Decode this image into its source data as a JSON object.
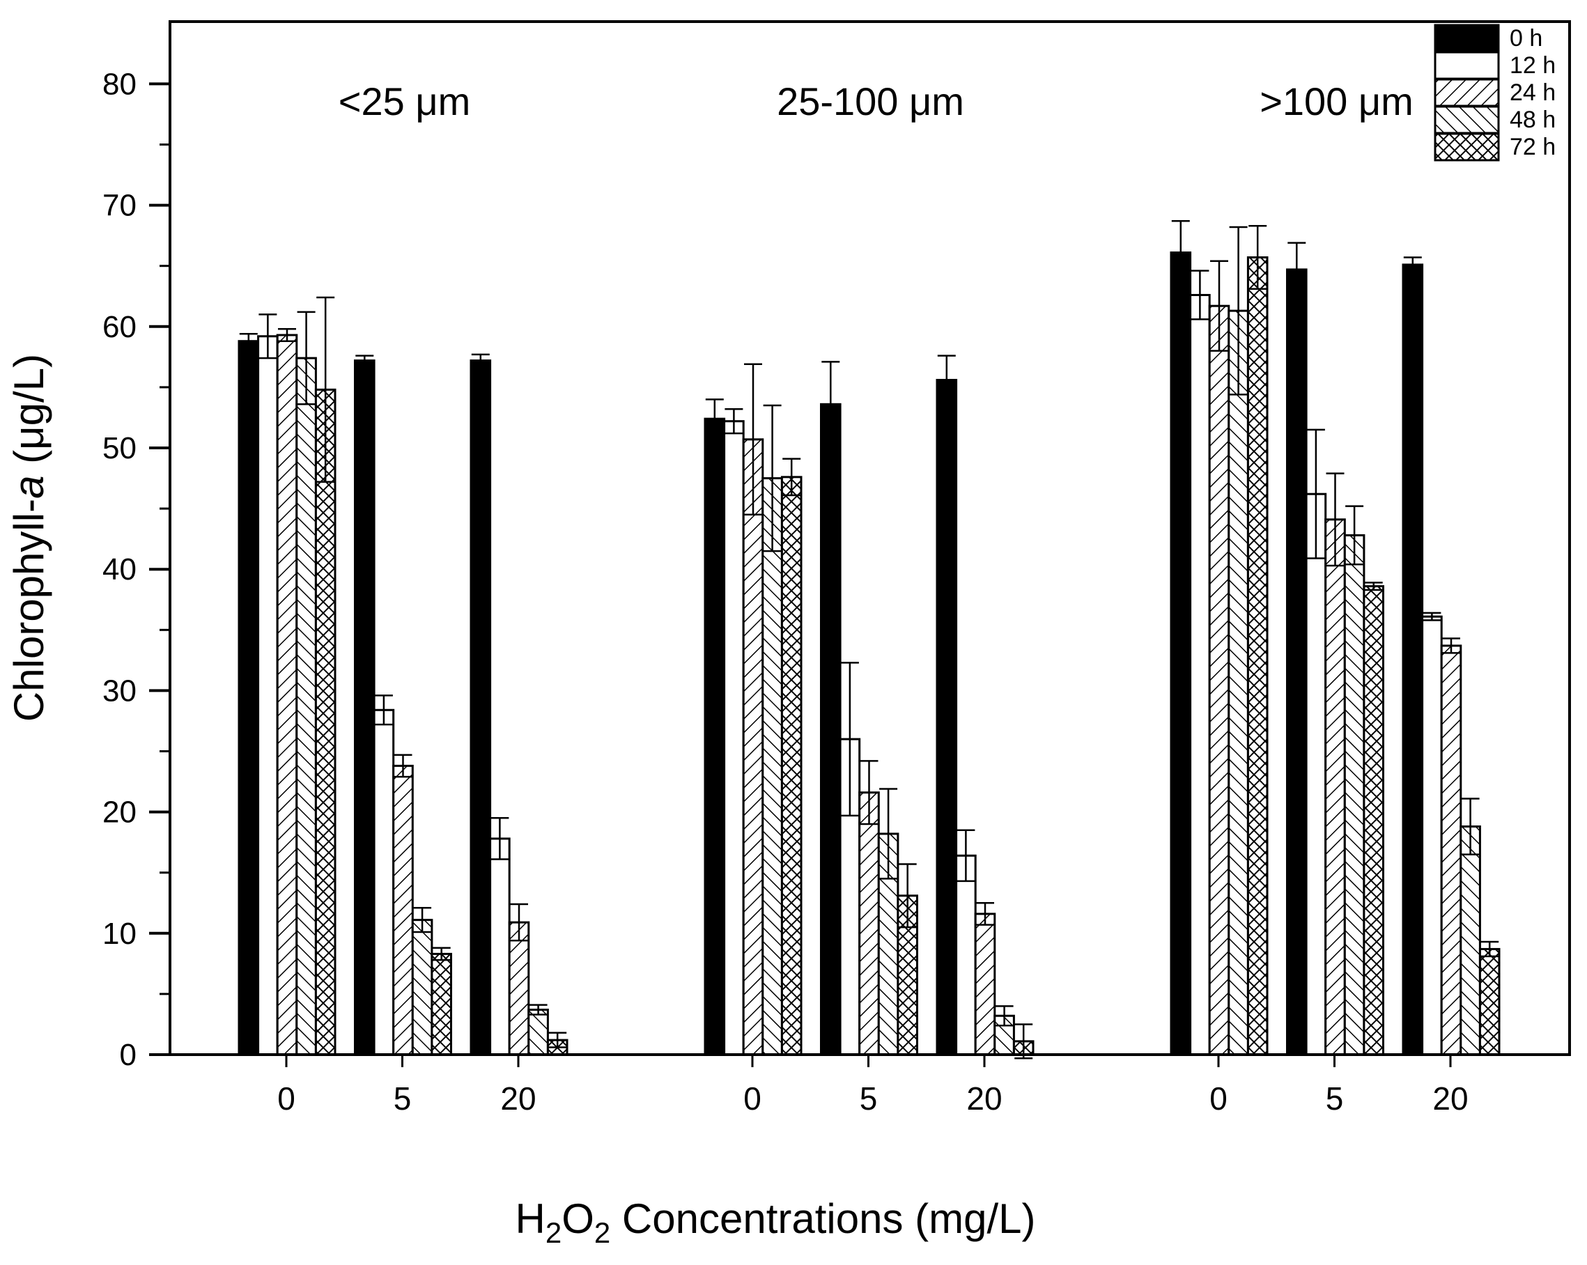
{
  "chart_data": {
    "type": "bar",
    "ylabel_main": "Chlorophyll-",
    "ylabel_italic": "a",
    "ylabel_tail": " (μg/L)",
    "xlabel_prefix": "H",
    "xlabel_sub1": "2",
    "xlabel_mid": "O",
    "xlabel_sub2": "2",
    "xlabel_suffix": " Concentrations (mg/L)",
    "ylim": [
      0,
      84
    ],
    "yticks": [
      "0",
      "10",
      "20",
      "30",
      "40",
      "50",
      "60",
      "70",
      "80"
    ],
    "legend_position": "top-right",
    "series_names": [
      "0 h",
      "12 h",
      "24 h",
      "48 h",
      "72 h"
    ],
    "groups": [
      {
        "label": "<25 μm",
        "clusters": [
          {
            "concentration": "0",
            "values": [
              58.8,
              59.2,
              59.3,
              57.4,
              54.8
            ],
            "errors": [
              0.6,
              1.8,
              0.5,
              3.8,
              7.6
            ]
          },
          {
            "concentration": "5",
            "values": [
              57.2,
              28.4,
              23.8,
              11.1,
              8.3
            ],
            "errors": [
              0.4,
              1.2,
              0.9,
              1.0,
              0.5
            ]
          },
          {
            "concentration": "20",
            "values": [
              57.2,
              17.8,
              10.9,
              3.7,
              1.2
            ],
            "errors": [
              0.5,
              1.7,
              1.5,
              0.4,
              0.6
            ]
          }
        ]
      },
      {
        "label": "25-100 μm",
        "clusters": [
          {
            "concentration": "0",
            "values": [
              52.4,
              52.2,
              50.7,
              47.5,
              47.6
            ],
            "errors": [
              1.6,
              1.0,
              6.2,
              6.0,
              1.5
            ]
          },
          {
            "concentration": "5",
            "values": [
              53.6,
              26.0,
              21.6,
              18.2,
              13.1
            ],
            "errors": [
              3.5,
              6.3,
              2.6,
              3.7,
              2.6
            ]
          },
          {
            "concentration": "20",
            "values": [
              55.6,
              16.4,
              11.6,
              3.2,
              1.1
            ],
            "errors": [
              2.0,
              2.1,
              0.9,
              0.8,
              1.4
            ]
          }
        ]
      },
      {
        "label": ">100 μm",
        "clusters": [
          {
            "concentration": "0",
            "values": [
              66.1,
              62.6,
              61.7,
              61.3,
              65.7
            ],
            "errors": [
              2.6,
              2.0,
              3.7,
              6.9,
              2.6
            ]
          },
          {
            "concentration": "5",
            "values": [
              64.7,
              46.2,
              44.1,
              42.8,
              38.6
            ],
            "errors": [
              2.2,
              5.3,
              3.8,
              2.4,
              0.3
            ]
          },
          {
            "concentration": "20",
            "values": [
              65.1,
              36.1,
              33.7,
              18.8,
              8.7
            ],
            "errors": [
              0.6,
              0.3,
              0.6,
              2.3,
              0.6
            ]
          }
        ]
      }
    ]
  }
}
